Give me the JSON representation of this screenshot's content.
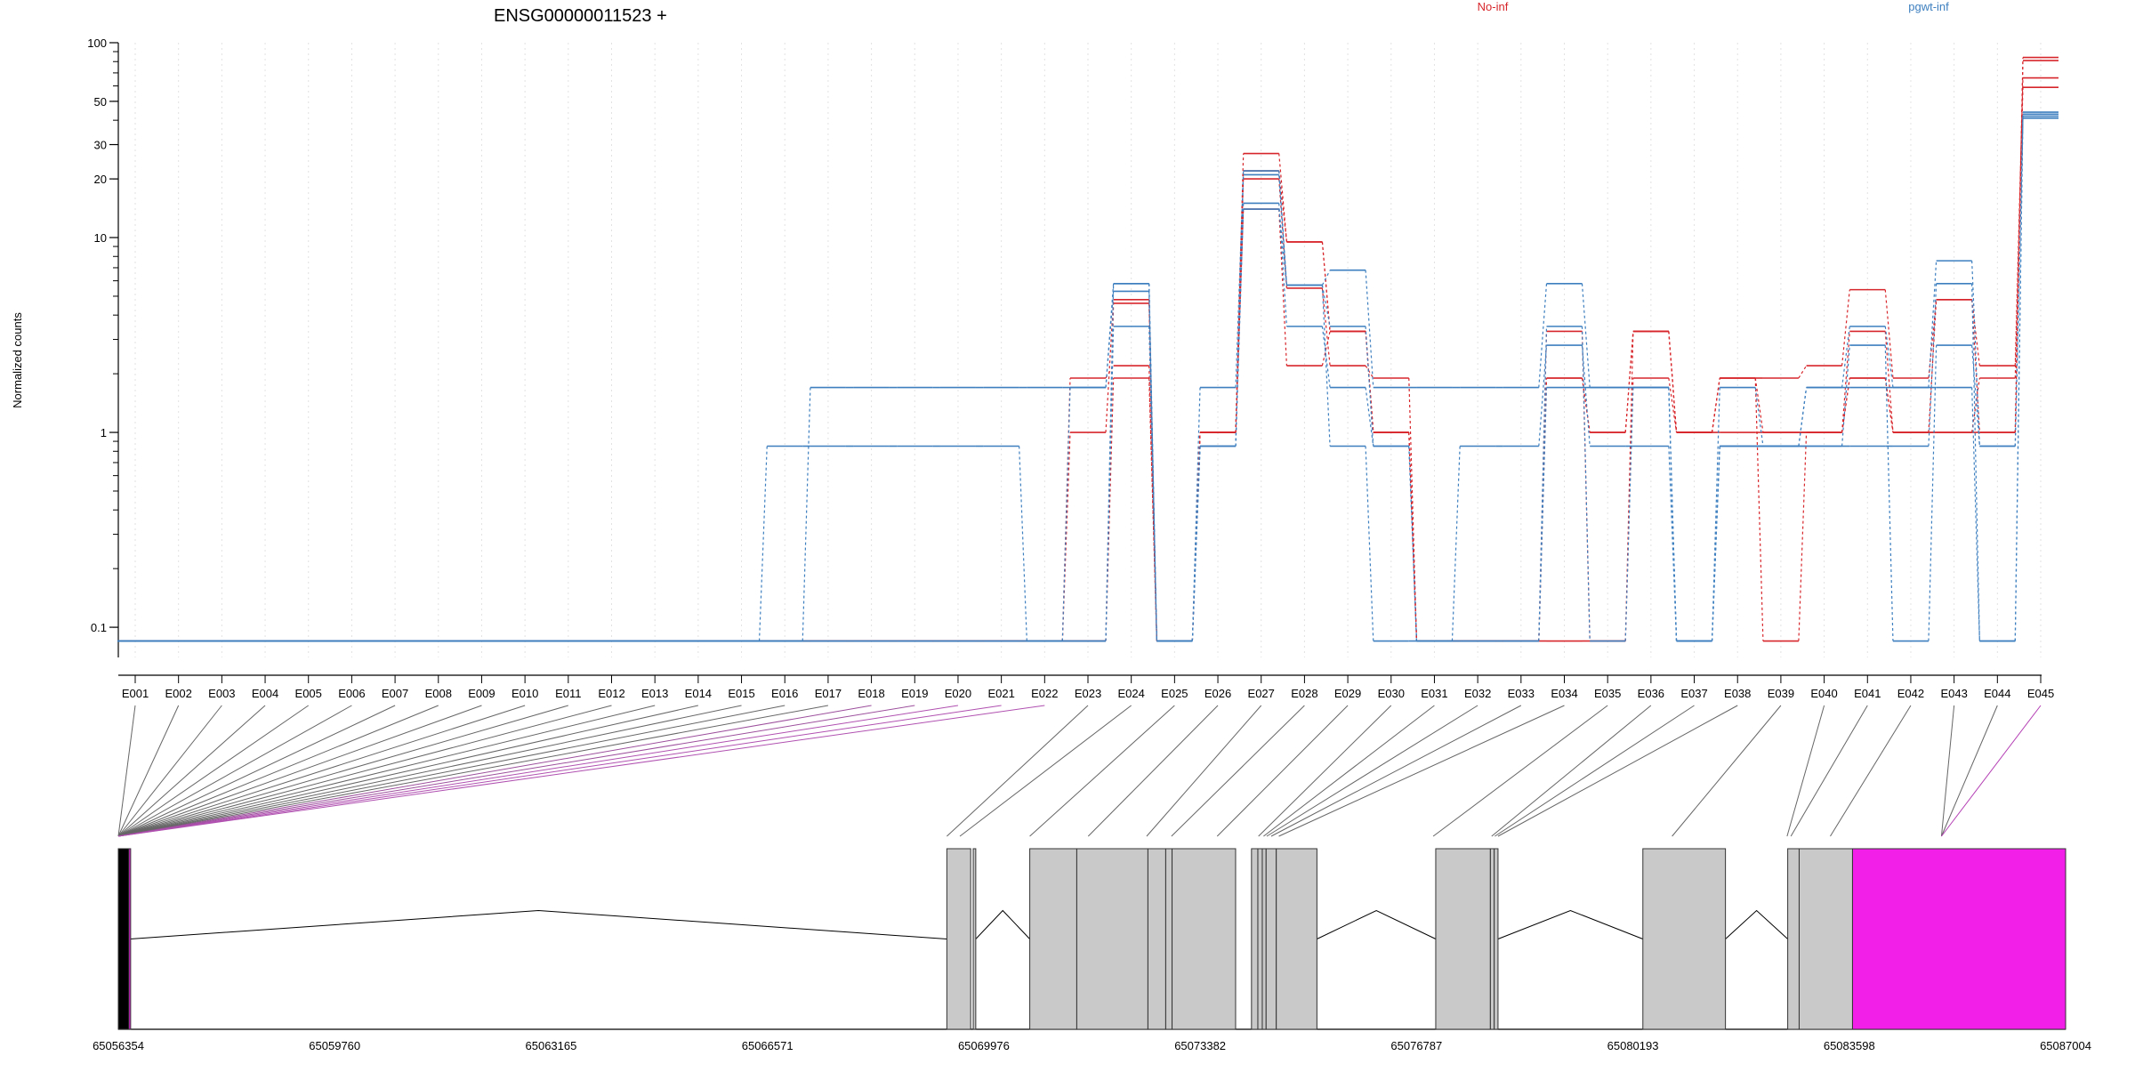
{
  "chart_data": {
    "type": "line",
    "title": "ENSG00000011523 +",
    "ylabel": "Normalized counts",
    "xlabel": "",
    "yscale": "log",
    "ylim": [
      0.07,
      100
    ],
    "y_ticks": [
      {
        "value": 100,
        "label": "100"
      },
      {
        "value": 50,
        "label": "50"
      },
      {
        "value": 30,
        "label": "30"
      },
      {
        "value": 20,
        "label": "20"
      },
      {
        "value": 10,
        "label": "10"
      },
      {
        "value": 1,
        "label": "1"
      },
      {
        "value": 0.1,
        "label": "0.1"
      }
    ],
    "grid": "vertical dotted at each exon",
    "legend": [
      {
        "name": "No-inf",
        "color": "#d7262b",
        "position": "top"
      },
      {
        "name": "pgwt-inf",
        "color": "#3d7fbf",
        "position": "top-right"
      }
    ],
    "categories": [
      "E001",
      "E002",
      "E003",
      "E004",
      "E005",
      "E006",
      "E007",
      "E008",
      "E009",
      "E010",
      "E011",
      "E012",
      "E013",
      "E014",
      "E015",
      "E016",
      "E017",
      "E018",
      "E019",
      "E020",
      "E021",
      "E022",
      "E023",
      "E024",
      "E025",
      "E026",
      "E027",
      "E028",
      "E029",
      "E030",
      "E031",
      "E032",
      "E033",
      "E034",
      "E035",
      "E036",
      "E037",
      "E038",
      "E039",
      "E040",
      "E041",
      "E042",
      "E043",
      "E044",
      "E045"
    ],
    "series": [
      {
        "group": "No-inf",
        "color": "#d7262b",
        "values": [
          0.085,
          0.085,
          0.085,
          0.085,
          0.085,
          0.085,
          0.085,
          0.085,
          0.085,
          0.085,
          0.085,
          0.085,
          0.085,
          0.085,
          0.085,
          0.085,
          0.085,
          0.085,
          0.085,
          0.085,
          0.085,
          0.085,
          0.085,
          1.9,
          0.085,
          1.0,
          27,
          9.5,
          3.3,
          1.0,
          0.085,
          0.085,
          0.085,
          1.9,
          1.0,
          3.3,
          1.0,
          1.0,
          1.0,
          1.0,
          1.9,
          1.0,
          1.0,
          1.0,
          84
        ]
      },
      {
        "group": "No-inf",
        "color": "#d7262b",
        "values": [
          0.085,
          0.085,
          0.085,
          0.085,
          0.085,
          0.085,
          0.085,
          0.085,
          0.085,
          0.085,
          0.085,
          0.085,
          0.085,
          0.085,
          0.085,
          0.085,
          0.085,
          0.085,
          0.085,
          0.085,
          0.085,
          0.085,
          1.0,
          4.8,
          0.085,
          1.0,
          20,
          5.5,
          2.2,
          1.9,
          0.085,
          0.085,
          0.085,
          3.3,
          0.085,
          3.3,
          1.0,
          1.9,
          1.9,
          2.2,
          5.4,
          1.9,
          4.8,
          2.2,
          66
        ]
      },
      {
        "group": "No-inf",
        "color": "#d7262b",
        "values": [
          0.085,
          0.085,
          0.085,
          0.085,
          0.085,
          0.085,
          0.085,
          0.085,
          0.085,
          0.085,
          0.085,
          0.085,
          0.085,
          0.085,
          0.085,
          0.085,
          0.085,
          0.085,
          0.085,
          0.085,
          0.085,
          0.085,
          1.9,
          2.2,
          0.085,
          1.0,
          14,
          2.2,
          3.3,
          1.0,
          0.085,
          0.085,
          0.085,
          0.085,
          0.085,
          1.9,
          1.0,
          1.9,
          0.085,
          1.0,
          3.3,
          1.0,
          1.0,
          1.9,
          59
        ]
      },
      {
        "group": "No-inf",
        "color": "#d7262b",
        "values": [
          0.085,
          0.085,
          0.085,
          0.085,
          0.085,
          0.085,
          0.085,
          0.085,
          0.085,
          0.085,
          0.085,
          0.085,
          0.085,
          0.085,
          0.085,
          0.085,
          0.085,
          0.085,
          0.085,
          0.085,
          0.085,
          0.085,
          0.085,
          4.6,
          0.085,
          1.0,
          22,
          9.5,
          3.3,
          1.0,
          0.085,
          0.085,
          0.085,
          1.9,
          1.0,
          3.3,
          1.0,
          1.9,
          1.0,
          1.0,
          1.9,
          1.0,
          4.8,
          1.0,
          81
        ]
      },
      {
        "group": "pgwt-inf",
        "color": "#3d7fbf",
        "values": [
          0.085,
          0.085,
          0.085,
          0.085,
          0.085,
          0.085,
          0.085,
          0.085,
          0.085,
          0.085,
          0.085,
          0.085,
          0.085,
          0.085,
          0.085,
          0.085,
          1.7,
          1.7,
          1.7,
          1.7,
          1.7,
          1.7,
          1.7,
          5.8,
          0.085,
          1.7,
          22,
          5.7,
          6.8,
          1.7,
          1.7,
          1.7,
          1.7,
          5.8,
          1.7,
          1.7,
          0.085,
          1.7,
          0.85,
          1.7,
          3.5,
          1.7,
          7.6,
          0.85,
          41
        ]
      },
      {
        "group": "pgwt-inf",
        "color": "#3d7fbf",
        "values": [
          0.085,
          0.085,
          0.085,
          0.085,
          0.085,
          0.085,
          0.085,
          0.085,
          0.085,
          0.085,
          0.085,
          0.085,
          0.085,
          0.085,
          0.085,
          0.85,
          0.85,
          0.85,
          0.85,
          0.85,
          0.85,
          0.085,
          0.085,
          3.5,
          0.085,
          0.85,
          15,
          3.5,
          1.7,
          0.85,
          0.085,
          0.85,
          0.85,
          2.8,
          0.85,
          0.85,
          0.085,
          0.85,
          0.85,
          0.85,
          2.8,
          0.085,
          2.8,
          0.85,
          42
        ]
      },
      {
        "group": "pgwt-inf",
        "color": "#3d7fbf",
        "values": [
          0.085,
          0.085,
          0.085,
          0.085,
          0.085,
          0.085,
          0.085,
          0.085,
          0.085,
          0.085,
          0.085,
          0.085,
          0.085,
          0.085,
          0.085,
          0.085,
          0.085,
          0.085,
          0.085,
          0.085,
          0.085,
          0.085,
          0.085,
          5.8,
          0.085,
          0.85,
          21,
          5.7,
          3.5,
          0.85,
          0.085,
          0.085,
          0.085,
          3.5,
          0.085,
          1.7,
          0.085,
          0.85,
          0.85,
          0.85,
          0.85,
          0.85,
          5.8,
          0.085,
          43
        ]
      },
      {
        "group": "pgwt-inf",
        "color": "#3d7fbf",
        "values": [
          0.085,
          0.085,
          0.085,
          0.085,
          0.085,
          0.085,
          0.085,
          0.085,
          0.085,
          0.085,
          0.085,
          0.085,
          0.085,
          0.085,
          0.085,
          0.085,
          0.085,
          0.085,
          0.085,
          0.085,
          0.085,
          0.085,
          1.7,
          5.3,
          0.085,
          0.85,
          14,
          5.7,
          0.85,
          0.085,
          0.085,
          0.085,
          0.085,
          1.7,
          1.7,
          1.7,
          0.085,
          0.85,
          0.85,
          1.7,
          1.7,
          1.7,
          1.7,
          0.085,
          44
        ]
      }
    ],
    "gene_model": {
      "coord_range": [
        65056354,
        65087004
      ],
      "axis_tick_labels": [
        "65056354",
        "65059760",
        "65063165",
        "65066571",
        "65069976",
        "65073382",
        "65076787",
        "65080193",
        "65083598",
        "65087004"
      ],
      "exons": [
        {
          "start": 65056354,
          "end": 65056520,
          "color": "#000000"
        },
        {
          "start": 65056520,
          "end": 65056540,
          "color": "#f21fe8"
        },
        {
          "start": 65069395,
          "end": 65069770,
          "color": "#c9c9c9"
        },
        {
          "start": 65069810,
          "end": 65069850,
          "color": "#c9c9c9"
        },
        {
          "start": 65070700,
          "end": 65071440,
          "color": "#c9c9c9"
        },
        {
          "start": 65071440,
          "end": 65072560,
          "color": "#c9c9c9"
        },
        {
          "start": 65072560,
          "end": 65072840,
          "color": "#c9c9c9"
        },
        {
          "start": 65072840,
          "end": 65072940,
          "color": "#c9c9c9"
        },
        {
          "start": 65072940,
          "end": 65073940,
          "color": "#c9c9c9"
        },
        {
          "start": 65074190,
          "end": 65074290,
          "color": "#c9c9c9"
        },
        {
          "start": 65074290,
          "end": 65074360,
          "color": "#c9c9c9"
        },
        {
          "start": 65074360,
          "end": 65074420,
          "color": "#c9c9c9"
        },
        {
          "start": 65074420,
          "end": 65074580,
          "color": "#c9c9c9"
        },
        {
          "start": 65074580,
          "end": 65075220,
          "color": "#c9c9c9"
        },
        {
          "start": 65077090,
          "end": 65077950,
          "color": "#c9c9c9"
        },
        {
          "start": 65077950,
          "end": 65078010,
          "color": "#c9c9c9"
        },
        {
          "start": 65078010,
          "end": 65078070,
          "color": "#c9c9c9"
        },
        {
          "start": 65080350,
          "end": 65081650,
          "color": "#c9c9c9"
        },
        {
          "start": 65082630,
          "end": 65082810,
          "color": "#c9c9c9"
        },
        {
          "start": 65082810,
          "end": 65083650,
          "color": "#c9c9c9"
        },
        {
          "start": 65083650,
          "end": 65087004,
          "color": "#f21fe8"
        }
      ],
      "introns": [
        [
          65056540,
          65069395
        ],
        [
          65069850,
          65070700
        ],
        [
          65075220,
          65077090
        ],
        [
          65078070,
          65080350
        ],
        [
          65081650,
          65082630
        ]
      ],
      "connector_targets": [
        65056354,
        65056354,
        65056354,
        65056354,
        65056354,
        65056354,
        65056354,
        65056354,
        65056354,
        65056354,
        65056354,
        65056354,
        65056354,
        65056354,
        65056354,
        65056354,
        65056354,
        65056354,
        65056354,
        65056354,
        65056354,
        65056354,
        65069395,
        65069600,
        65070700,
        65071620,
        65072540,
        65072930,
        65073650,
        65074300,
        65074380,
        65074430,
        65074500,
        65074620,
        65077050,
        65077970,
        65078020,
        65078070,
        65080810,
        65082620,
        65082680,
        65083300,
        65085050,
        65085050,
        65085050
      ],
      "connector_colors": [
        "#666666",
        "#666666",
        "#666666",
        "#666666",
        "#666666",
        "#666666",
        "#666666",
        "#666666",
        "#666666",
        "#666666",
        "#666666",
        "#666666",
        "#666666",
        "#666666",
        "#666666",
        "#666666",
        "#666666",
        "#9c4f9c",
        "#9c4f9c",
        "#b050b0",
        "#b050b0",
        "#b050b0",
        "#666666",
        "#666666",
        "#666666",
        "#666666",
        "#666666",
        "#666666",
        "#666666",
        "#666666",
        "#666666",
        "#666666",
        "#666666",
        "#666666",
        "#666666",
        "#666666",
        "#666666",
        "#666666",
        "#666666",
        "#666666",
        "#666666",
        "#666666",
        "#666666",
        "#666666",
        "#b43fb4"
      ]
    }
  }
}
